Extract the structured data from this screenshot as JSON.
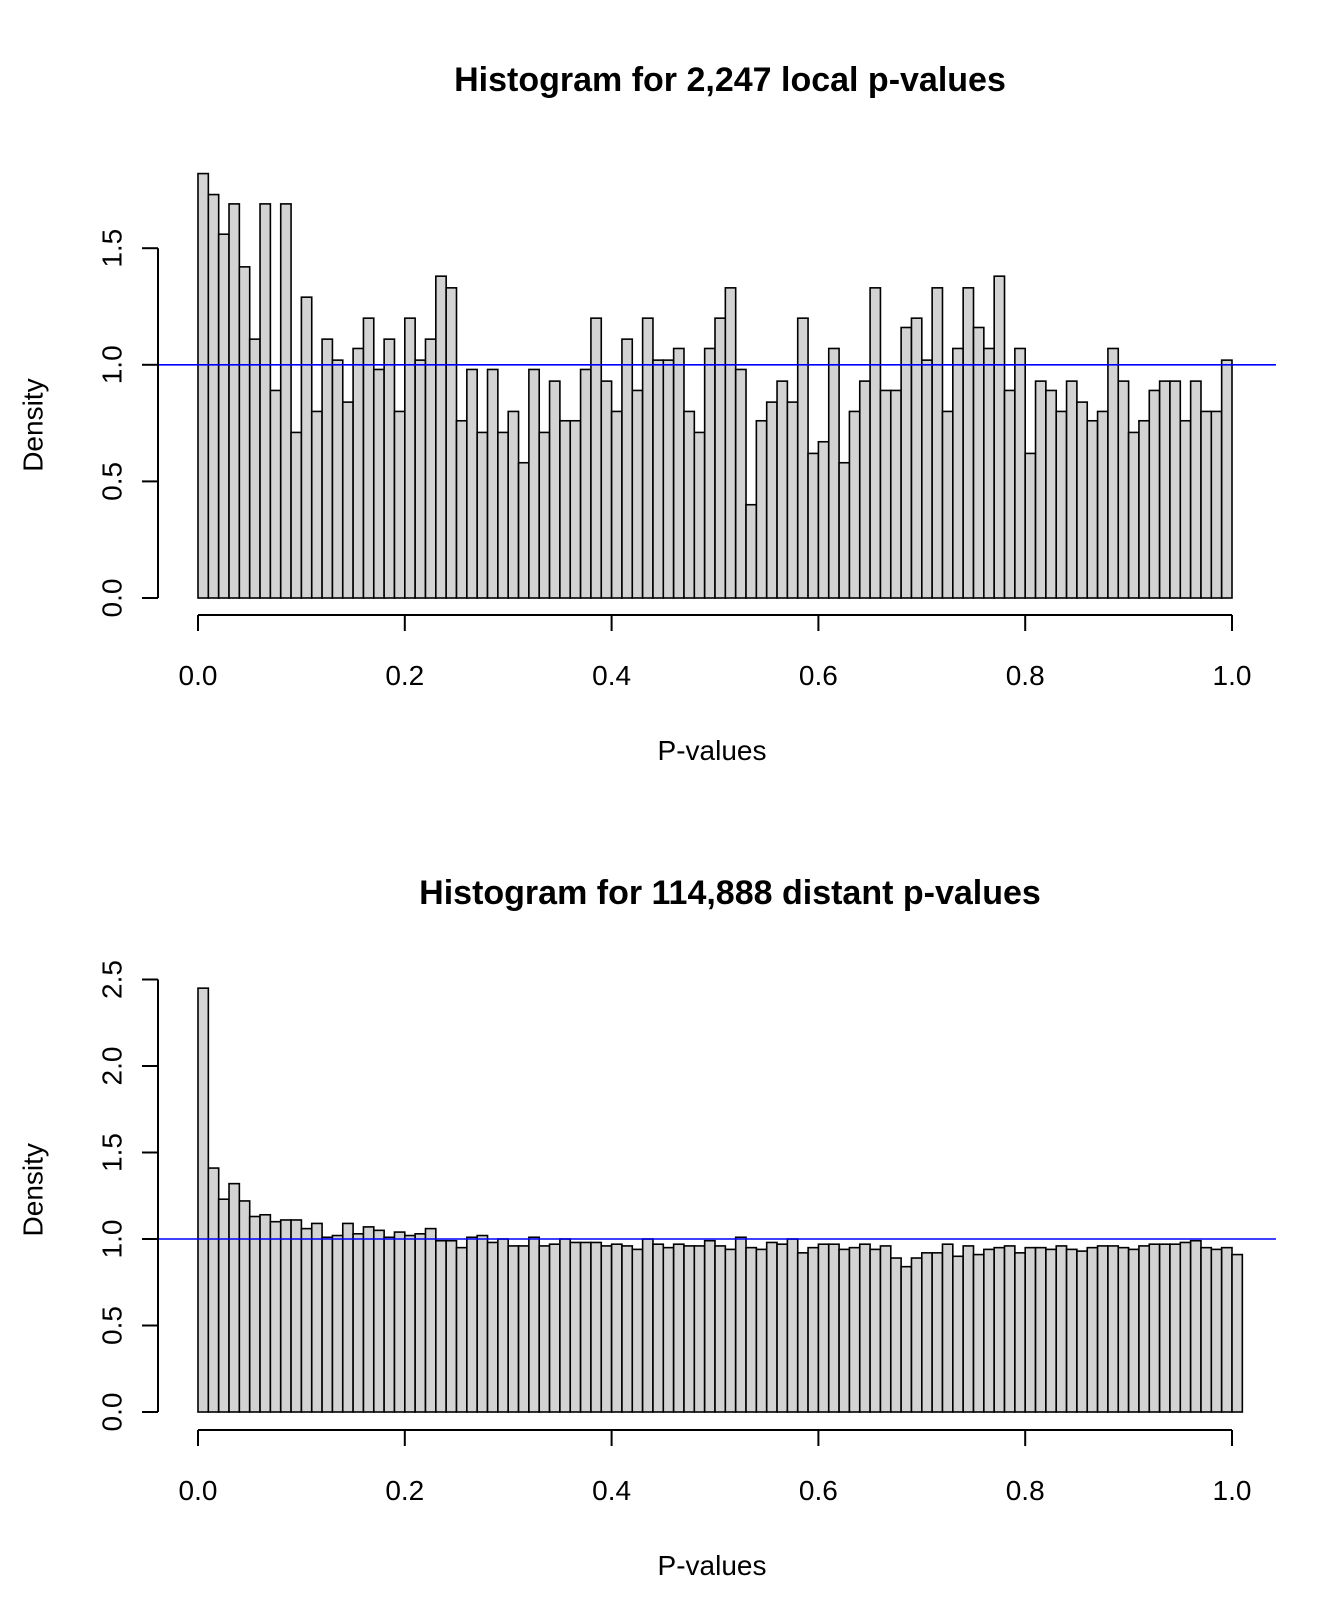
{
  "chart_data": [
    {
      "type": "bar",
      "title": "Histogram for 2,247 local p-values",
      "xlabel": "P-values",
      "ylabel": "Density",
      "xlim": [
        0,
        1
      ],
      "ylim": [
        0,
        1.85
      ],
      "x_ticks": [
        "0.0",
        "0.2",
        "0.4",
        "0.6",
        "0.8",
        "1.0"
      ],
      "y_ticks": [
        "0.0",
        "0.5",
        "1.0",
        "1.5"
      ],
      "bin_width": 0.01,
      "reference_line": {
        "y": 1.0,
        "color": "#0000ff"
      },
      "bar_color": "#d3d3d3",
      "values": [
        1.82,
        1.73,
        1.56,
        1.69,
        1.42,
        1.11,
        1.69,
        0.89,
        1.69,
        0.71,
        1.29,
        0.8,
        1.11,
        1.02,
        0.84,
        1.07,
        1.2,
        0.98,
        1.11,
        0.8,
        1.2,
        1.02,
        1.11,
        1.38,
        1.33,
        0.76,
        0.98,
        0.71,
        0.98,
        0.71,
        0.8,
        0.58,
        0.98,
        0.71,
        0.93,
        0.76,
        0.76,
        0.98,
        1.2,
        0.93,
        0.8,
        1.11,
        0.89,
        1.2,
        1.02,
        1.02,
        1.07,
        0.8,
        0.71,
        1.07,
        1.2,
        1.33,
        0.98,
        0.4,
        0.76,
        0.84,
        0.93,
        0.84,
        1.2,
        0.62,
        0.67,
        1.07,
        0.58,
        0.8,
        0.93,
        1.33,
        0.89,
        0.89,
        1.16,
        1.2,
        1.02,
        1.33,
        0.8,
        1.07,
        1.33,
        1.16,
        1.07,
        1.38,
        0.89,
        1.07,
        0.62,
        0.93,
        0.89,
        0.8,
        0.93,
        0.84,
        0.76,
        0.8,
        1.07,
        0.93,
        0.71,
        0.76,
        0.89,
        0.93,
        0.93,
        0.76,
        0.93,
        0.8,
        0.8,
        1.02
      ]
    },
    {
      "type": "bar",
      "title": "Histogram for 114,888 distant p-values",
      "xlabel": "P-values",
      "ylabel": "Density",
      "xlim": [
        0,
        1
      ],
      "ylim": [
        0,
        2.5
      ],
      "x_ticks": [
        "0.0",
        "0.2",
        "0.4",
        "0.6",
        "0.8",
        "1.0"
      ],
      "y_ticks": [
        "0.0",
        "0.5",
        "1.0",
        "1.5",
        "2.0",
        "2.5"
      ],
      "bin_width": 0.01,
      "reference_line": {
        "y": 1.0,
        "color": "#0000ff"
      },
      "bar_color": "#d3d3d3",
      "values": [
        2.45,
        1.41,
        1.23,
        1.32,
        1.22,
        1.13,
        1.14,
        1.1,
        1.11,
        1.11,
        1.06,
        1.09,
        1.01,
        1.02,
        1.09,
        1.03,
        1.07,
        1.05,
        1.01,
        1.04,
        1.02,
        1.03,
        1.06,
        0.99,
        0.99,
        0.95,
        1.01,
        1.02,
        0.98,
        1.0,
        0.96,
        0.96,
        1.01,
        0.96,
        0.97,
        1.0,
        0.98,
        0.98,
        0.98,
        0.96,
        0.97,
        0.96,
        0.94,
        1.0,
        0.97,
        0.95,
        0.97,
        0.96,
        0.96,
        0.99,
        0.96,
        0.94,
        1.01,
        0.95,
        0.94,
        0.98,
        0.97,
        1.0,
        0.92,
        0.95,
        0.97,
        0.97,
        0.94,
        0.95,
        0.97,
        0.94,
        0.96,
        0.89,
        0.84,
        0.89,
        0.92,
        0.92,
        0.97,
        0.9,
        0.96,
        0.91,
        0.94,
        0.95,
        0.96,
        0.92,
        0.95,
        0.95,
        0.94,
        0.96,
        0.94,
        0.93,
        0.95,
        0.96,
        0.96,
        0.95,
        0.94,
        0.96,
        0.97,
        0.97,
        0.97,
        0.98,
        0.99,
        0.95,
        0.94,
        0.95,
        0.91
      ]
    }
  ]
}
